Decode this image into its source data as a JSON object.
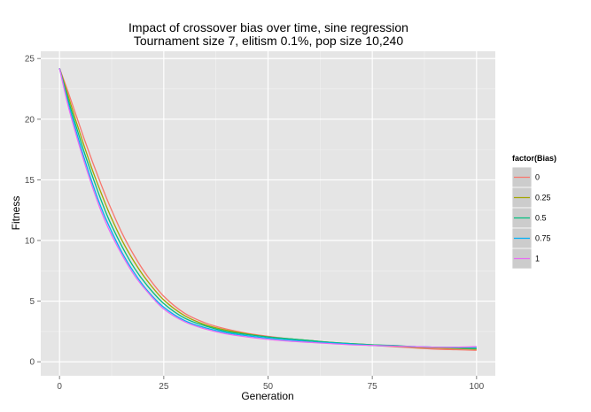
{
  "chart_data": {
    "type": "line",
    "title": [
      "Impact of crossover bias over time, sine regression",
      "Tournament size 7, elitism 0.1%, pop size 10,240"
    ],
    "xlabel": "Generation",
    "ylabel": "Fitness",
    "xlim": [
      -4.5,
      104.5
    ],
    "ylim": [
      -1.15,
      25.6
    ],
    "xticks": [
      0,
      25,
      50,
      75,
      100
    ],
    "yticks": [
      0,
      5,
      10,
      15,
      20,
      25
    ],
    "grid": true,
    "legend": {
      "title": "factor(Bias)",
      "placement": "right"
    },
    "x": [
      0,
      2,
      4,
      6,
      8,
      10,
      12,
      15,
      18,
      21,
      25,
      30,
      35,
      40,
      45,
      50,
      55,
      60,
      65,
      70,
      75,
      80,
      85,
      90,
      95,
      100
    ],
    "series": [
      {
        "name": "0",
        "color": "#F8766D",
        "values": [
          24.2,
          22.3,
          20.3,
          18.3,
          16.4,
          14.6,
          12.9,
          10.6,
          8.7,
          7.1,
          5.4,
          4.0,
          3.2,
          2.7,
          2.35,
          2.1,
          1.9,
          1.75,
          1.6,
          1.45,
          1.35,
          1.25,
          1.15,
          1.05,
          1.0,
          0.95
        ]
      },
      {
        "name": "0.25",
        "color": "#A3A500",
        "values": [
          24.2,
          22.0,
          19.8,
          17.7,
          15.7,
          13.9,
          12.2,
          10.0,
          8.2,
          6.7,
          5.1,
          3.8,
          3.05,
          2.6,
          2.3,
          2.05,
          1.9,
          1.75,
          1.6,
          1.5,
          1.4,
          1.3,
          1.2,
          1.15,
          1.1,
          1.05
        ]
      },
      {
        "name": "0.5",
        "color": "#00BF7D",
        "values": [
          24.2,
          21.7,
          19.4,
          17.2,
          15.2,
          13.3,
          11.6,
          9.5,
          7.7,
          6.3,
          4.8,
          3.6,
          2.95,
          2.5,
          2.25,
          2.05,
          1.9,
          1.75,
          1.6,
          1.5,
          1.4,
          1.35,
          1.25,
          1.2,
          1.15,
          1.1
        ]
      },
      {
        "name": "0.75",
        "color": "#00B0F6",
        "values": [
          24.2,
          21.4,
          19.0,
          16.7,
          14.6,
          12.7,
          11.1,
          9.0,
          7.3,
          5.9,
          4.5,
          3.4,
          2.8,
          2.4,
          2.15,
          1.95,
          1.8,
          1.65,
          1.55,
          1.45,
          1.35,
          1.3,
          1.25,
          1.2,
          1.2,
          1.2
        ]
      },
      {
        "name": "1",
        "color": "#E76BF3",
        "values": [
          24.2,
          21.2,
          18.7,
          16.4,
          14.3,
          12.4,
          10.8,
          8.8,
          7.1,
          5.8,
          4.35,
          3.3,
          2.7,
          2.3,
          2.05,
          1.85,
          1.7,
          1.6,
          1.5,
          1.4,
          1.35,
          1.3,
          1.25,
          1.2,
          1.2,
          1.25
        ]
      }
    ]
  }
}
